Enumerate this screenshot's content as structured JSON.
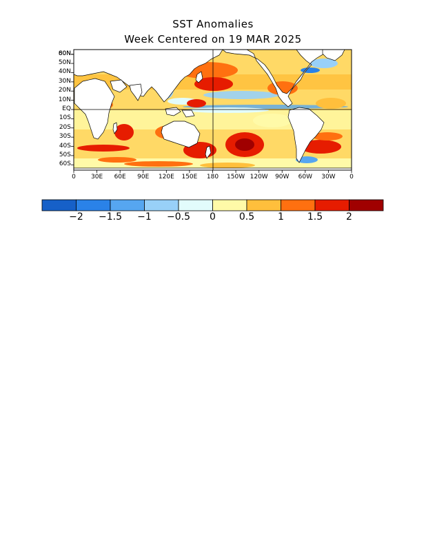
{
  "title_line1": "SST Anomalies",
  "title_line2": "Week Centered on 19 MAR 2025",
  "lat_labels": [
    "80N",
    "60N",
    "50N",
    "40N",
    "30N",
    "20N",
    "10N",
    "EQ",
    "10S",
    "20S",
    "30S",
    "40S",
    "50S",
    "60S"
  ],
  "lon_labels": [
    "0",
    "30E",
    "60E",
    "90E",
    "120E",
    "150E",
    "180",
    "150W",
    "120W",
    "90W",
    "60W",
    "30W",
    "0"
  ],
  "colorbar": {
    "colors": [
      "#1660c8",
      "#2a82e8",
      "#56a6f0",
      "#98d0f8",
      "#e2fcfc",
      "#fffaa8",
      "#ffbf3c",
      "#ff7010",
      "#e61c00",
      "#a00000"
    ],
    "labels": [
      "−2",
      "−1.5",
      "−1",
      "−0.5",
      "0",
      "0.5",
      "1",
      "1.5",
      "2"
    ]
  },
  "colors": {
    "land": "#ffffff",
    "coast": "#000000"
  }
}
